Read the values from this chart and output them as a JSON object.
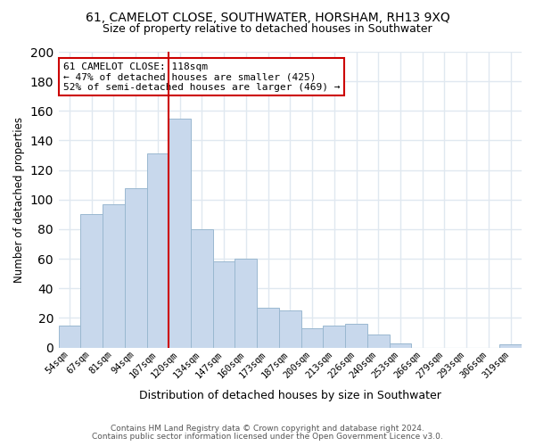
{
  "title1": "61, CAMELOT CLOSE, SOUTHWATER, HORSHAM, RH13 9XQ",
  "title2": "Size of property relative to detached houses in Southwater",
  "xlabel": "Distribution of detached houses by size in Southwater",
  "ylabel": "Number of detached properties",
  "bar_labels": [
    "54sqm",
    "67sqm",
    "81sqm",
    "94sqm",
    "107sqm",
    "120sqm",
    "134sqm",
    "147sqm",
    "160sqm",
    "173sqm",
    "187sqm",
    "200sqm",
    "213sqm",
    "226sqm",
    "240sqm",
    "253sqm",
    "266sqm",
    "279sqm",
    "293sqm",
    "306sqm",
    "319sqm"
  ],
  "bar_values": [
    15,
    90,
    97,
    108,
    131,
    155,
    80,
    58,
    60,
    27,
    25,
    13,
    15,
    16,
    9,
    3,
    0,
    0,
    0,
    0,
    2
  ],
  "bar_color": "#c8d8ec",
  "bar_edge_color": "#9ab8d0",
  "vline_color": "#cc0000",
  "annotation_title": "61 CAMELOT CLOSE: 118sqm",
  "annotation_line1": "← 47% of detached houses are smaller (425)",
  "annotation_line2": "52% of semi-detached houses are larger (469) →",
  "box_edge_color": "#cc0000",
  "ylim": [
    0,
    200
  ],
  "yticks": [
    0,
    20,
    40,
    60,
    80,
    100,
    120,
    140,
    160,
    180,
    200
  ],
  "footer1": "Contains HM Land Registry data © Crown copyright and database right 2024.",
  "footer2": "Contains public sector information licensed under the Open Government Licence v3.0.",
  "bg_color": "#ffffff",
  "grid_color": "#e0e8f0",
  "title1_fontsize": 10,
  "title2_fontsize": 9
}
